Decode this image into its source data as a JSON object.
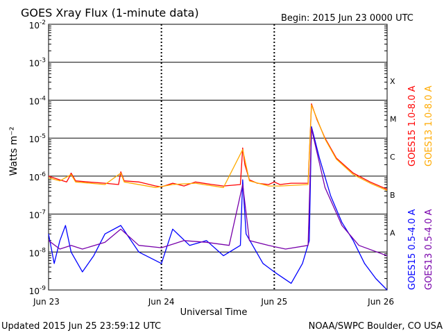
{
  "header": {
    "title": "GOES Xray Flux (1-minute data)",
    "begin": "Begin:  2015 Jun 23 0000 UTC"
  },
  "footer": {
    "updated": "Updated 2015 Jun 25 23:59:12 UTC",
    "credit": "NOAA/SWPC Boulder, CO USA"
  },
  "chart_data": {
    "type": "line",
    "title": "GOES Xray Flux (1-minute data)",
    "xlabel": "Universal Time",
    "ylabel": "Watts m⁻²",
    "y_scale": "log",
    "ylim": [
      1e-09,
      0.01
    ],
    "xlim_days": [
      0,
      3
    ],
    "x_ticks": [
      "Jun 23",
      "Jun 24",
      "Jun 25",
      "Jun 26"
    ],
    "y_ticks": [
      {
        "base": "10",
        "exp": "-2",
        "value": 0.01
      },
      {
        "base": "10",
        "exp": "-3",
        "value": 0.001
      },
      {
        "base": "10",
        "exp": "-4",
        "value": 0.0001
      },
      {
        "base": "10",
        "exp": "-5",
        "value": 1e-05
      },
      {
        "base": "10",
        "exp": "-6",
        "value": 1e-06
      },
      {
        "base": "10",
        "exp": "-7",
        "value": 1e-07
      },
      {
        "base": "10",
        "exp": "-8",
        "value": 1e-08
      },
      {
        "base": "10",
        "exp": "-9",
        "value": 1e-09
      }
    ],
    "flare_classes": [
      {
        "label": "X",
        "value": 0.00032
      },
      {
        "label": "M",
        "value": 3.2e-05
      },
      {
        "label": "C",
        "value": 3.2e-06
      },
      {
        "label": "B",
        "value": 3.2e-07
      },
      {
        "label": "A",
        "value": 3.2e-08
      }
    ],
    "grid": true,
    "legend_position": "right",
    "series": [
      {
        "name": "GOES15 1.0-8.0 A",
        "color": "#ff0000",
        "points": [
          [
            0.0,
            1e-06
          ],
          [
            0.1,
            8e-07
          ],
          [
            0.16,
            7e-07
          ],
          [
            0.18,
            9e-07
          ],
          [
            0.2,
            1.2e-06
          ],
          [
            0.24,
            7.5e-07
          ],
          [
            0.35,
            7e-07
          ],
          [
            0.5,
            6.5e-07
          ],
          [
            0.62,
            6e-07
          ],
          [
            0.64,
            1.3e-06
          ],
          [
            0.67,
            7.5e-07
          ],
          [
            0.8,
            7e-07
          ],
          [
            0.95,
            5.5e-07
          ],
          [
            1.0,
            5.2e-07
          ],
          [
            1.1,
            6.5e-07
          ],
          [
            1.2,
            5.5e-07
          ],
          [
            1.3,
            7e-07
          ],
          [
            1.45,
            6e-07
          ],
          [
            1.55,
            5.5e-07
          ],
          [
            1.7,
            6e-07
          ],
          [
            1.72,
            5.5e-06
          ],
          [
            1.74,
            2e-06
          ],
          [
            1.78,
            8e-07
          ],
          [
            1.85,
            6.5e-07
          ],
          [
            1.95,
            6e-07
          ],
          [
            2.0,
            7e-07
          ],
          [
            2.05,
            6e-07
          ],
          [
            2.15,
            6.5e-07
          ],
          [
            2.3,
            6.5e-07
          ],
          [
            2.33,
            8e-05
          ],
          [
            2.38,
            3e-05
          ],
          [
            2.45,
            1e-05
          ],
          [
            2.55,
            3e-06
          ],
          [
            2.7,
            1.2e-06
          ],
          [
            2.85,
            7e-07
          ],
          [
            3.0,
            4.5e-07
          ]
        ]
      },
      {
        "name": "GOES13 1.0-8.0 A",
        "color": "#ffaa00",
        "points": [
          [
            0.0,
            9e-07
          ],
          [
            0.1,
            7.5e-07
          ],
          [
            0.2,
            1.1e-06
          ],
          [
            0.24,
            7e-07
          ],
          [
            0.5,
            6e-07
          ],
          [
            0.64,
            1.2e-06
          ],
          [
            0.67,
            7e-07
          ],
          [
            0.95,
            5e-07
          ],
          [
            1.1,
            6e-07
          ],
          [
            1.3,
            6.5e-07
          ],
          [
            1.55,
            5e-07
          ],
          [
            1.72,
            5e-06
          ],
          [
            1.78,
            7.5e-07
          ],
          [
            1.95,
            5.5e-07
          ],
          [
            2.05,
            5.5e-07
          ],
          [
            2.3,
            6e-07
          ],
          [
            2.33,
            7.5e-05
          ],
          [
            2.45,
            9.5e-06
          ],
          [
            2.55,
            2.8e-06
          ],
          [
            2.7,
            1.1e-06
          ],
          [
            2.85,
            6.5e-07
          ],
          [
            3.0,
            4.2e-07
          ]
        ]
      },
      {
        "name": "GOES15 0.5-4.0 A",
        "color": "#0000ff",
        "points": [
          [
            0.0,
            3e-08
          ],
          [
            0.05,
            5e-09
          ],
          [
            0.1,
            2e-08
          ],
          [
            0.15,
            5e-08
          ],
          [
            0.2,
            1e-08
          ],
          [
            0.3,
            3e-09
          ],
          [
            0.4,
            8e-09
          ],
          [
            0.5,
            3e-08
          ],
          [
            0.64,
            5e-08
          ],
          [
            0.8,
            1e-08
          ],
          [
            1.0,
            5e-09
          ],
          [
            1.1,
            4e-08
          ],
          [
            1.25,
            1.5e-08
          ],
          [
            1.4,
            2e-08
          ],
          [
            1.55,
            8e-09
          ],
          [
            1.7,
            1.5e-08
          ],
          [
            1.72,
            8e-07
          ],
          [
            1.75,
            3e-08
          ],
          [
            1.9,
            5e-09
          ],
          [
            2.0,
            3e-09
          ],
          [
            2.15,
            1.5e-09
          ],
          [
            2.25,
            5e-09
          ],
          [
            2.31,
            2e-08
          ],
          [
            2.33,
            2e-05
          ],
          [
            2.4,
            3e-06
          ],
          [
            2.5,
            3e-07
          ],
          [
            2.6,
            6e-08
          ],
          [
            2.7,
            2e-08
          ],
          [
            2.8,
            5e-09
          ],
          [
            2.9,
            2e-09
          ],
          [
            3.0,
            1e-09
          ]
        ]
      },
      {
        "name": "GOES13 0.5-4.0 A",
        "color": "#7700aa",
        "points": [
          [
            0.0,
            2e-08
          ],
          [
            0.1,
            1.2e-08
          ],
          [
            0.2,
            1.5e-08
          ],
          [
            0.3,
            1.2e-08
          ],
          [
            0.5,
            1.8e-08
          ],
          [
            0.64,
            4e-08
          ],
          [
            0.8,
            1.5e-08
          ],
          [
            1.0,
            1.3e-08
          ],
          [
            1.2,
            2e-08
          ],
          [
            1.4,
            1.8e-08
          ],
          [
            1.6,
            1.5e-08
          ],
          [
            1.72,
            6e-07
          ],
          [
            1.78,
            2e-08
          ],
          [
            1.95,
            1.5e-08
          ],
          [
            2.1,
            1.2e-08
          ],
          [
            2.3,
            1.5e-08
          ],
          [
            2.33,
            1.8e-05
          ],
          [
            2.45,
            5e-07
          ],
          [
            2.6,
            5e-08
          ],
          [
            2.75,
            1.5e-08
          ],
          [
            3.0,
            8e-09
          ]
        ]
      }
    ]
  }
}
